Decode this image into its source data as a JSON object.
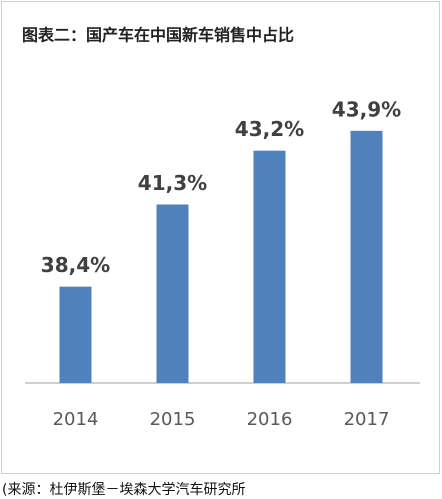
{
  "chart_data": {
    "type": "bar",
    "title": "图表二：国产车在中国新车销售中占比",
    "categories": [
      "2014",
      "2015",
      "2016",
      "2017"
    ],
    "values": [
      38.4,
      41.3,
      43.2,
      43.9
    ],
    "value_labels": [
      "38,4%",
      "41,3%",
      "43,2%",
      "43,9%"
    ],
    "color": "#4f81bd",
    "ylim": [
      35,
      47
    ],
    "source": "(来源：杜伊斯堡－埃森大学汽车研究所"
  }
}
